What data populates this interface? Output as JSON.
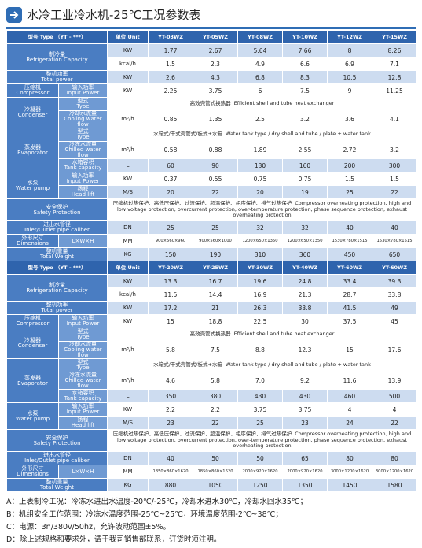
{
  "title": "水冷工业冷水机-25℃工况参数表",
  "tables": [
    {
      "header": {
        "type": "型号 Type （YT - ***）",
        "unit": "单位 Unit",
        "models": [
          "YT-03WZ",
          "YT-05WZ",
          "YT-08WZ",
          "YT-10WZ",
          "YT-12WZ",
          "YT-15WZ"
        ]
      },
      "groups": [
        {
          "label": {
            "cn": "制冷量",
            "en": "Refrigeration Capacity"
          },
          "rows": [
            {
              "unit": "KW",
              "values": [
                "1.77",
                "2.67",
                "5.64",
                "7.66",
                "8",
                "8.26"
              ]
            },
            {
              "unit": "kcal/h",
              "values": [
                "1.5",
                "2.3",
                "4.9",
                "6.6",
                "6.9",
                "7.1"
              ]
            }
          ]
        },
        {
          "label": {
            "cn": "整机功率",
            "en": "Total power"
          },
          "rows": [
            {
              "unit": "KW",
              "values": [
                "2.6",
                "4.3",
                "6.8",
                "8.3",
                "10.5",
                "12.8"
              ]
            }
          ]
        },
        {
          "label": {
            "cn": "压缩机",
            "en": "Compressor"
          },
          "rows": [
            {
              "sub": {
                "cn": "输入功率",
                "en": "Input Power"
              },
              "unit": "KW",
              "values": [
                "2.25",
                "3.75",
                "6",
                "7.5",
                "9",
                "11.25"
              ]
            }
          ]
        },
        {
          "label": {
            "cn": "冷凝器",
            "en": "Condenser"
          },
          "rows": [
            {
              "sub": {
                "cn": "型式",
                "en": "Type"
              },
              "span": {
                "cn": "高效壳管式换热器",
                "en": "Efficient shell and tube heat exchanger"
              }
            },
            {
              "sub": {
                "cn": "冷却水流量",
                "en": "Cooling water flow"
              },
              "unit": "m³/h",
              "values": [
                "0.85",
                "1.35",
                "2.5",
                "3.2",
                "3.6",
                "4.1"
              ]
            }
          ]
        },
        {
          "label": {
            "cn": "蒸发器",
            "en": "Evaporator"
          },
          "rows": [
            {
              "sub": {
                "cn": "型式",
                "en": "Type"
              },
              "span": {
                "cn": "水箱式/干式壳管式/板式+水箱",
                "en": "Water tank type / dry shell and tube / plate + water tank"
              }
            },
            {
              "sub": {
                "cn": "冷冻水流量",
                "en": "Chilled water flow"
              },
              "unit": "m³/h",
              "values": [
                "0.58",
                "0.88",
                "1.89",
                "2.55",
                "2.72",
                "3.2"
              ]
            },
            {
              "sub": {
                "cn": "水箱容积",
                "en": "Tank capacity"
              },
              "unit": "L",
              "values": [
                "60",
                "90",
                "130",
                "160",
                "200",
                "300"
              ]
            }
          ]
        },
        {
          "label": {
            "cn": "水泵",
            "en": "Water pump"
          },
          "rows": [
            {
              "sub": {
                "cn": "输入功率",
                "en": "Input Power"
              },
              "unit": "KW",
              "values": [
                "0.37",
                "0.55",
                "0.75",
                "0.75",
                "1.5",
                "1.5"
              ]
            },
            {
              "sub": {
                "cn": "扬程",
                "en": "Head lift"
              },
              "unit": "M/S",
              "values": [
                "20",
                "22",
                "20",
                "19",
                "25",
                "22"
              ]
            }
          ]
        },
        {
          "label": {
            "cn": "安全保护",
            "en": "Safety Protection"
          },
          "rows": [
            {
              "span": {
                "cn": "压缩机过热保护、高低压保护、过流保护、超温保护、相序保护、排气过热保护",
                "en": "Compressor overheating protection, high and low voltage protection, overcurrent protection, over-temperature protection, phase sequence protection, exhaust overheating protection"
              }
            }
          ]
        },
        {
          "label": {
            "cn": "进出水管径",
            "en": "Inlet/Outlet pipe caliber"
          },
          "rows": [
            {
              "unit": "DN",
              "values": [
                "25",
                "25",
                "32",
                "32",
                "40",
                "40"
              ]
            }
          ]
        },
        {
          "label": {
            "cn": "外形尺寸",
            "en": "Dimensions"
          },
          "rows": [
            {
              "sub": {
                "cn": "L×W×H",
                "en": ""
              },
              "unit": "MM",
              "values": [
                "900×560×960",
                "900×560×1000",
                "1200×650×1350",
                "1200×650×1350",
                "1530×780×1515",
                "1530×780×1515"
              ]
            }
          ]
        },
        {
          "label": {
            "cn": "整机重量",
            "en": "Total Weight"
          },
          "rows": [
            {
              "unit": "KG",
              "values": [
                "150",
                "190",
                "310",
                "360",
                "450",
                "650"
              ]
            }
          ]
        }
      ]
    },
    {
      "header": {
        "type": "型号 Type （YT - ***）",
        "unit": "单位 Unit",
        "models": [
          "YT-20WZ",
          "YT-25WZ",
          "YT-30WZ",
          "YT-40WZ",
          "YT-60WZ",
          "YT-60WZ"
        ]
      },
      "groups": [
        {
          "label": {
            "cn": "制冷量",
            "en": "Refrigeration Capacity"
          },
          "rows": [
            {
              "unit": "KW",
              "values": [
                "13.3",
                "16.7",
                "19.6",
                "24.8",
                "33.4",
                "39.3"
              ]
            },
            {
              "unit": "kcal/h",
              "values": [
                "11.5",
                "14.4",
                "16.9",
                "21.3",
                "28.7",
                "33.8"
              ]
            }
          ]
        },
        {
          "label": {
            "cn": "整机功率",
            "en": "Total power"
          },
          "rows": [
            {
              "unit": "KW",
              "values": [
                "17.2",
                "21",
                "26.3",
                "33.8",
                "41.5",
                "49"
              ]
            }
          ]
        },
        {
          "label": {
            "cn": "压缩机",
            "en": "Compressor"
          },
          "rows": [
            {
              "sub": {
                "cn": "输入功率",
                "en": "Input Power"
              },
              "unit": "KW",
              "values": [
                "15",
                "18.8",
                "22.5",
                "30",
                "37.5",
                "45"
              ]
            }
          ]
        },
        {
          "label": {
            "cn": "冷凝器",
            "en": "Condenser"
          },
          "rows": [
            {
              "sub": {
                "cn": "型式",
                "en": "Type"
              },
              "span": {
                "cn": "高效壳管式换热器",
                "en": "Efficient shell and tube heat exchanger"
              }
            },
            {
              "sub": {
                "cn": "冷却水流量",
                "en": "Cooling water flow"
              },
              "unit": "m³/h",
              "values": [
                "5.8",
                "7.5",
                "8.8",
                "12.3",
                "15",
                "17.6"
              ]
            }
          ]
        },
        {
          "label": {
            "cn": "蒸发器",
            "en": "Evaporator"
          },
          "rows": [
            {
              "sub": {
                "cn": "型式",
                "en": "Type"
              },
              "span": {
                "cn": "水箱式/干式壳管式/板式+水箱",
                "en": "Water tank type / dry shell and tube / plate + water tank"
              }
            },
            {
              "sub": {
                "cn": "冷冻水流量",
                "en": "Chilled water flow"
              },
              "unit": "m³/h",
              "values": [
                "4.6",
                "5.8",
                "7.0",
                "9.2",
                "11.6",
                "13.9"
              ]
            },
            {
              "sub": {
                "cn": "水箱容积",
                "en": "Tank capacity"
              },
              "unit": "L",
              "values": [
                "350",
                "380",
                "430",
                "430",
                "460",
                "500"
              ]
            }
          ]
        },
        {
          "label": {
            "cn": "水泵",
            "en": "Water pump"
          },
          "rows": [
            {
              "sub": {
                "cn": "输入功率",
                "en": "Input Power"
              },
              "unit": "KW",
              "values": [
                "2.2",
                "2.2",
                "3.75",
                "3.75",
                "4",
                "4"
              ]
            },
            {
              "sub": {
                "cn": "扬程",
                "en": "Head lift"
              },
              "unit": "M/S",
              "values": [
                "23",
                "22",
                "25",
                "23",
                "24",
                "22"
              ]
            }
          ]
        },
        {
          "label": {
            "cn": "安全保护",
            "en": "Safety Protection"
          },
          "rows": [
            {
              "span": {
                "cn": "压缩机过热保护、高低压保护、过流保护、超温保护、相序保护、排气过热保护",
                "en": "Compressor overheating protection, high and low voltage protection, overcurrent protection, over-temperature protection, phase sequence protection, exhaust overheating protection"
              }
            }
          ]
        },
        {
          "label": {
            "cn": "进出水管径",
            "en": "Inlet/Outlet pipe caliber"
          },
          "rows": [
            {
              "unit": "DN",
              "values": [
                "40",
                "50",
                "50",
                "65",
                "80",
                "80"
              ]
            }
          ]
        },
        {
          "label": {
            "cn": "外形尺寸",
            "en": "Dimensions"
          },
          "rows": [
            {
              "sub": {
                "cn": "L×W×H",
                "en": ""
              },
              "unit": "MM",
              "values": [
                "1850×860×1620",
                "1850×860×1620",
                "2000×920×1620",
                "2000×920×1620",
                "3000×1200×1620",
                "3000×1200×1620"
              ]
            }
          ]
        },
        {
          "label": {
            "cn": "整机重量",
            "en": "Total Weight"
          },
          "rows": [
            {
              "unit": "KG",
              "values": [
                "880",
                "1050",
                "1250",
                "1350",
                "1450",
                "1580"
              ]
            }
          ]
        }
      ]
    }
  ],
  "notes": [
    "A：上表制冷工况：冷冻水进出水温度-20℃/-25℃，冷却水进水30℃，冷却水回水35℃；",
    "B：机组安全工作范围：冷冻水温度范围-25℃~25℃，环境温度范围-2℃~38℃；",
    "C：电源：3n/380v/50hz，允许波动范围±5%。",
    "D：除上述规格和要求外，请于我司销售部联系，订货时须注明。"
  ]
}
